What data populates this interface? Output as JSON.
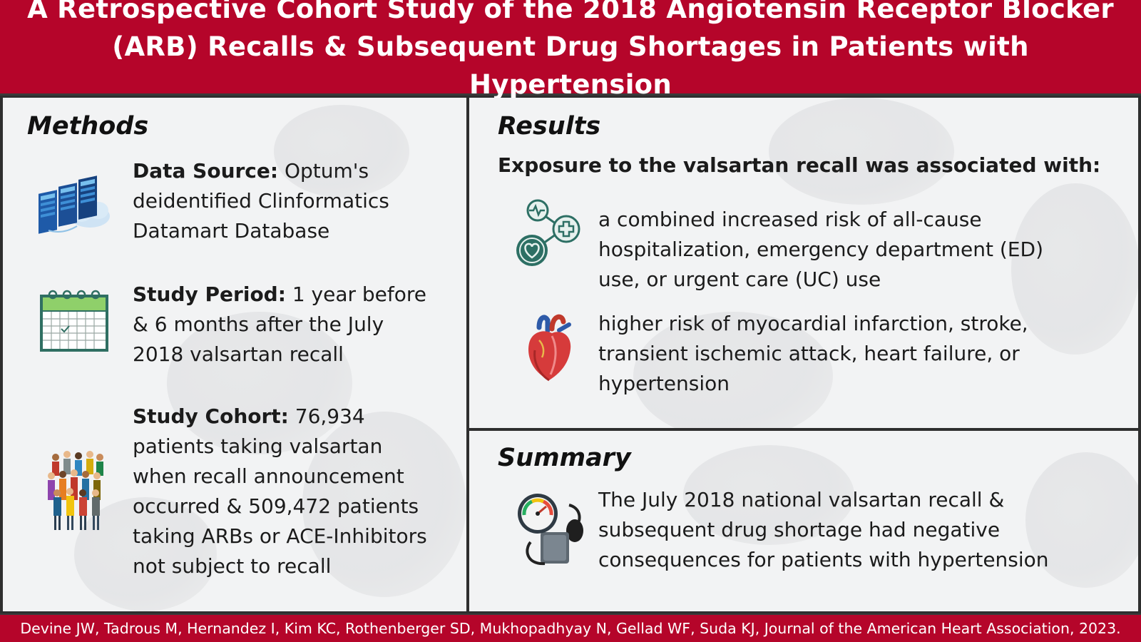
{
  "header": {
    "title_line1": "A Retrospective Cohort Study of the 2018 Angiotensin Receptor Blocker",
    "title_line2": "(ARB) Recalls & Subsequent Drug Shortages in Patients with Hypertension"
  },
  "methods": {
    "title": "Methods",
    "items": [
      {
        "icon": "server-cloud-icon",
        "label": "Data Source:",
        "text_line1": " Optum's",
        "text_line2": "deidentified Clinformatics",
        "text_line3": "Datamart Database"
      },
      {
        "icon": "calendar-icon",
        "label": "Study Period:",
        "text_line1": " 1 year before",
        "text_line2": "& 6 months after the July",
        "text_line3": "2018 valsartan recall"
      },
      {
        "icon": "crowd-icon",
        "label": "Study Cohort:",
        "text_line1": " 76,934",
        "text_line2": "patients taking valsartan",
        "text_line3": "when recall announcement",
        "text_line4": "occurred & 509,472 patients",
        "text_line5": "taking ARBs or ACE-Inhibitors",
        "text_line6": "not subject to recall"
      }
    ]
  },
  "results": {
    "title": "Results",
    "subtitle": "Exposure to the valsartan recall was associated with:",
    "items": [
      {
        "icon": "health-network-icon",
        "line1": "a combined increased risk of all-cause",
        "line2": "hospitalization, emergency department (ED)",
        "line3": "use, or urgent care (UC) use"
      },
      {
        "icon": "anatomical-heart-icon",
        "line1": "higher risk of myocardial infarction, stroke,",
        "line2": "transient ischemic attack, heart failure, or",
        "line3": "hypertension"
      }
    ]
  },
  "summary": {
    "title": "Summary",
    "icon": "blood-pressure-gauge-icon",
    "line1": "The July 2018 national valsartan recall &",
    "line2": "subsequent drug shortage had negative",
    "line3": "consequences for patients with hypertension"
  },
  "footer": {
    "citation": "Devine JW, Tadrous M, Hernandez I, Kim KC, Rothenberger SD, Mukhopadhyay N, Gellad WF, Suda KJ, Journal of the American Heart Association, 2023."
  },
  "colors": {
    "brand_red": "#b5052a",
    "panel_bg": "#f2f3f4",
    "teal": "#2d6f64"
  }
}
